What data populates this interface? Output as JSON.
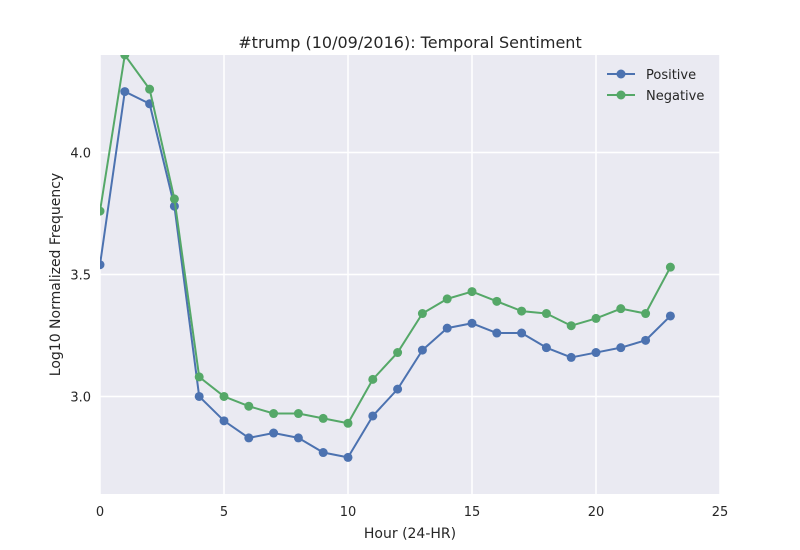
{
  "chart_data": {
    "type": "line",
    "title": "#trump (10/09/2016): Temporal Sentiment",
    "xlabel": "Hour (24-HR)",
    "ylabel": "Log10 Normalized Frequency",
    "xlim": [
      0,
      25
    ],
    "ylim": [
      2.6,
      4.4
    ],
    "xticks": [
      0,
      5,
      10,
      15,
      20,
      25
    ],
    "yticks": [
      3.0,
      3.5,
      4.0
    ],
    "ytick_labels": [
      "3.0",
      "3.5",
      "4.0"
    ],
    "grid": true,
    "legend_position": "top-right",
    "x": [
      0,
      1,
      2,
      3,
      4,
      5,
      6,
      7,
      8,
      9,
      10,
      11,
      12,
      13,
      14,
      15,
      16,
      17,
      18,
      19,
      20,
      21,
      22,
      23
    ],
    "series": [
      {
        "name": "Positive",
        "color": "#4c72b0",
        "values": [
          3.54,
          4.25,
          4.2,
          3.78,
          3.0,
          2.9,
          2.83,
          2.85,
          2.83,
          2.77,
          2.75,
          2.92,
          3.03,
          3.19,
          3.28,
          3.3,
          3.26,
          3.26,
          3.2,
          3.16,
          3.18,
          3.2,
          3.23,
          3.33
        ]
      },
      {
        "name": "Negative",
        "color": "#55a868",
        "values": [
          3.76,
          4.4,
          4.26,
          3.81,
          3.08,
          3.0,
          2.96,
          2.93,
          2.93,
          2.91,
          2.89,
          3.07,
          3.18,
          3.34,
          3.4,
          3.43,
          3.39,
          3.35,
          3.34,
          3.29,
          3.32,
          3.36,
          3.34,
          3.53
        ]
      }
    ]
  },
  "style": {
    "plot_background": "#eaeaf2",
    "grid_color": "#ffffff"
  }
}
